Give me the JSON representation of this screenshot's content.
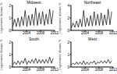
{
  "chart_data": [
    {
      "type": "line",
      "title": "Midwest",
      "y_label": "Legionnaires' disease, %",
      "color": "#000000",
      "x": [
        2000.1,
        2000.6,
        2001.1,
        2001.6,
        2002.1,
        2002.6,
        2003.1,
        2003.6,
        2004.1,
        2004.6,
        2005.1,
        2005.6,
        2006.1,
        2006.6,
        2007.1,
        2007.6,
        2008.1,
        2008.6,
        2009.1,
        2009.6,
        2010.1,
        2010.6,
        2011.1,
        2011.6
      ],
      "values": [
        0.3,
        0.9,
        0.3,
        1.0,
        0.3,
        1.1,
        0.4,
        1.6,
        0.3,
        1.2,
        0.4,
        1.3,
        0.4,
        1.8,
        0.4,
        1.4,
        0.5,
        1.5,
        0.4,
        1.3,
        0.5,
        1.7,
        0.5,
        1.6
      ],
      "xlim": [
        2000,
        2012
      ],
      "xticks": [
        2004,
        2008,
        2012
      ],
      "ylim": [
        0,
        2
      ],
      "yticks": [
        0,
        1,
        2
      ]
    },
    {
      "type": "line",
      "title": "Northeast",
      "y_label": "Legionnaires' disease, %",
      "color": "#000000",
      "x": [
        2000.1,
        2000.6,
        2001.1,
        2001.6,
        2002.1,
        2002.6,
        2003.1,
        2003.6,
        2004.1,
        2004.6,
        2005.1,
        2005.6,
        2006.1,
        2006.6,
        2007.1,
        2007.6,
        2008.1,
        2008.6,
        2009.1,
        2009.6,
        2010.1,
        2010.6,
        2011.1,
        2011.6
      ],
      "values": [
        0.4,
        1.2,
        0.5,
        1.5,
        0.5,
        1.8,
        0.6,
        3.2,
        0.6,
        2.0,
        0.7,
        2.4,
        0.7,
        3.0,
        0.8,
        2.6,
        0.8,
        2.8,
        0.8,
        2.5,
        0.9,
        3.4,
        0.9,
        3.0
      ],
      "xlim": [
        2000,
        2012
      ],
      "xticks": [
        2004,
        2008,
        2012
      ],
      "ylim": [
        0,
        4
      ],
      "yticks": [
        0,
        2,
        4
      ]
    },
    {
      "type": "line",
      "title": "South",
      "y_label": "Legionnaires' disease, %",
      "color": "#000000",
      "x": [
        2000.1,
        2000.6,
        2001.1,
        2001.6,
        2002.1,
        2002.6,
        2003.1,
        2003.6,
        2004.1,
        2004.6,
        2005.1,
        2005.6,
        2006.1,
        2006.6,
        2007.1,
        2007.6,
        2008.1,
        2008.6,
        2009.1,
        2009.6,
        2010.1,
        2010.6,
        2011.1,
        2011.6
      ],
      "values": [
        0.2,
        0.4,
        0.2,
        0.5,
        0.2,
        0.5,
        0.3,
        0.7,
        0.2,
        0.5,
        0.3,
        0.6,
        0.3,
        0.7,
        0.3,
        0.6,
        0.3,
        0.6,
        0.3,
        0.6,
        0.3,
        0.8,
        0.3,
        0.7
      ],
      "xlim": [
        2000,
        2012
      ],
      "xticks": [
        2004,
        2008,
        2012
      ],
      "ylim": [
        0,
        2
      ],
      "yticks": [
        0,
        1,
        2
      ]
    },
    {
      "type": "line",
      "title": "West",
      "y_label": "Legionnaires' disease, %",
      "color": "#000000",
      "x": [
        2000.1,
        2000.6,
        2001.1,
        2001.6,
        2002.1,
        2002.6,
        2003.1,
        2003.6,
        2004.1,
        2004.6,
        2005.1,
        2005.6,
        2006.1,
        2006.6,
        2007.1,
        2007.6,
        2008.1,
        2008.6,
        2009.1,
        2009.6,
        2010.1,
        2010.6,
        2011.1,
        2011.6
      ],
      "values": [
        0.2,
        0.3,
        0.2,
        0.4,
        0.2,
        0.4,
        0.2,
        0.5,
        0.2,
        0.4,
        0.2,
        0.4,
        0.3,
        0.5,
        0.2,
        0.4,
        0.3,
        0.5,
        0.3,
        0.5,
        0.3,
        0.6,
        0.3,
        0.5
      ],
      "xlim": [
        2000,
        2012
      ],
      "xticks": [
        2004,
        2008,
        2012
      ],
      "ylim": [
        0,
        2
      ],
      "yticks": [
        0,
        1,
        2
      ]
    }
  ]
}
